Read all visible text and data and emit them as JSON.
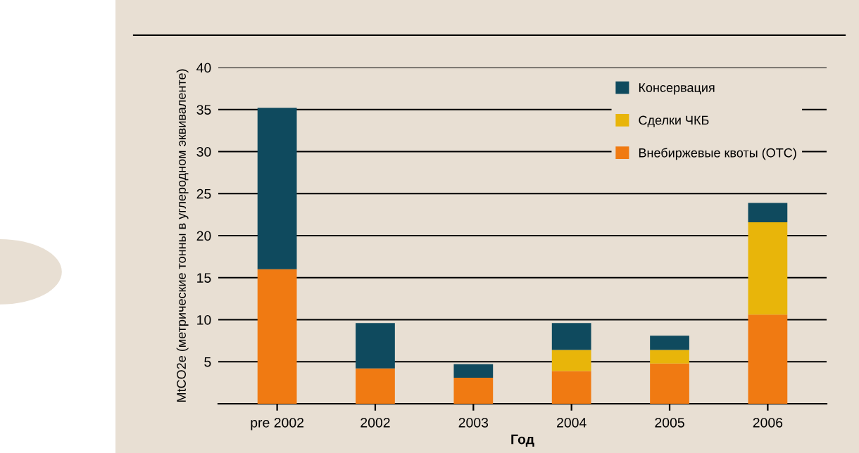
{
  "chart_data": {
    "type": "bar",
    "stacked": true,
    "categories": [
      "pre 2002",
      "2002",
      "2003",
      "2004",
      "2005",
      "2006"
    ],
    "series": [
      {
        "name": "Внебиржевые квоты (ОТС)",
        "color": "#f07a12",
        "values": [
          16,
          4.2,
          3.1,
          3.9,
          4.8,
          10.6
        ]
      },
      {
        "name": "Сделки ЧКБ",
        "color": "#e8b50a",
        "values": [
          0,
          0,
          0,
          2.5,
          1.6,
          11.0
        ]
      },
      {
        "name": "Консервация",
        "color": "#0f4a5e",
        "values": [
          19.2,
          5.4,
          1.6,
          3.2,
          1.7,
          2.3
        ]
      }
    ],
    "xlabel": "Год",
    "ylabel": "MtCO2e (метрические тонны в углеродном эквиваленте)",
    "ylim": [
      0,
      40
    ],
    "yticks": [
      {
        "value": 0,
        "label": null
      },
      5,
      10,
      15,
      20,
      25,
      30,
      35,
      40
    ],
    "grid": "y",
    "legend": "top right"
  }
}
